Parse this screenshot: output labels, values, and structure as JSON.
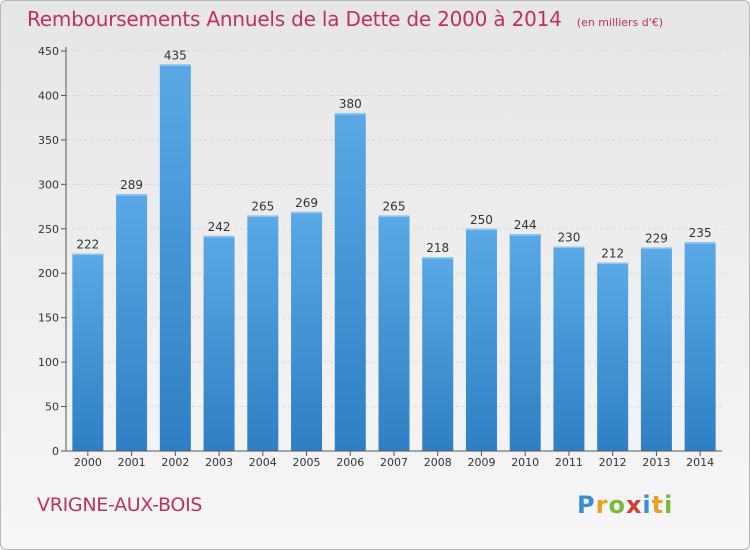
{
  "header": {
    "title": "Remboursements Annuels de la Dette de 2000 à 2014",
    "subtitle": "(en milliers d'€)"
  },
  "footer": {
    "place": "VRIGNE-AUX-BOIS",
    "logo": {
      "letters": [
        "P",
        "r",
        "o",
        "x",
        "i",
        "t",
        "i"
      ],
      "colors": [
        "#3a8fd0",
        "#e9a01e",
        "#79b83b",
        "#d43c2f",
        "#3a8fd0",
        "#e9a01e",
        "#79b83b"
      ]
    }
  },
  "colors": {
    "bar": "#5aa9e6",
    "bar_dark": "#2e7fc4",
    "title": "#c0305c"
  },
  "chart_data": {
    "type": "bar",
    "categories": [
      "2000",
      "2001",
      "2002",
      "2003",
      "2004",
      "2005",
      "2006",
      "2007",
      "2008",
      "2009",
      "2010",
      "2011",
      "2012",
      "2013",
      "2014"
    ],
    "values": [
      222,
      289,
      435,
      242,
      265,
      269,
      380,
      265,
      218,
      250,
      244,
      230,
      212,
      229,
      235
    ],
    "data_labels": [
      "222",
      "289",
      "435",
      "242",
      "265",
      "269",
      "380",
      "265",
      "218",
      "250",
      "244",
      "230",
      "212",
      "229",
      "235"
    ],
    "yticks": [
      "0",
      "50",
      "100",
      "150",
      "200",
      "250",
      "300",
      "350",
      "400",
      "450"
    ],
    "ylim": [
      0,
      450
    ],
    "grid": true,
    "legend": false
  }
}
